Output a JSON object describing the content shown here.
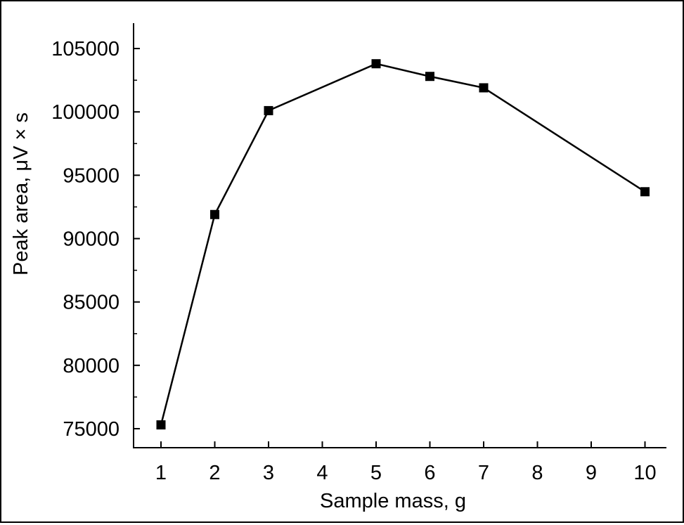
{
  "chart_data": {
    "type": "line",
    "title": "",
    "xlabel": "Sample mass, g",
    "ylabel": "Peak area, μV × s",
    "x_categories": [
      "1",
      "2",
      "3",
      "4",
      "5",
      "6",
      "7",
      "8",
      "9",
      "10"
    ],
    "series": [
      {
        "x": [
          "1",
          "2",
          "3",
          "5",
          "6",
          "7",
          "10"
        ],
        "y": [
          75300,
          91900,
          100100,
          103800,
          102800,
          101900,
          93700
        ],
        "marker": "square",
        "color": "#000000"
      }
    ],
    "ylim": [
      73500,
      107000
    ],
    "yticks": [
      75000,
      80000,
      85000,
      90000,
      95000,
      100000,
      105000
    ],
    "ytick_labels": [
      "75000",
      "80000",
      "85000",
      "90000",
      "95000",
      "100000",
      "105000"
    ],
    "grid": false,
    "legend": false
  }
}
